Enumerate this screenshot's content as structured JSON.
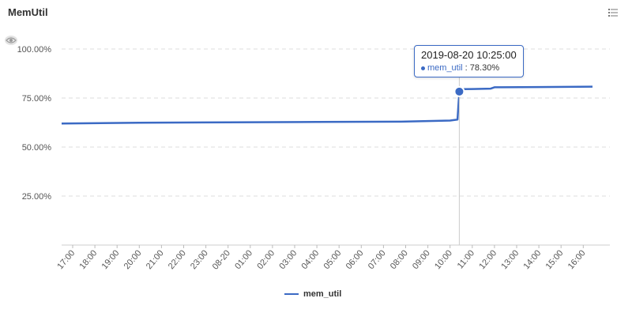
{
  "title": "MemUtil",
  "icons": {
    "menu": "list-menu-icon",
    "visibility": "eye-icon"
  },
  "colors": {
    "series": "#3b6ac4",
    "grid": "#dddddd",
    "crosshair": "#cccccc"
  },
  "tooltip": {
    "time": "2019-08-20 10:25:00",
    "series": "mem_util",
    "value_text": "78.30%"
  },
  "legend": {
    "label": "mem_util"
  },
  "chart_data": {
    "type": "line",
    "title": "MemUtil",
    "xlabel": "",
    "ylabel": "",
    "ylim": [
      0,
      100
    ],
    "y_ticks": [
      "25.00%",
      "50.00%",
      "75.00%",
      "100.00%"
    ],
    "x_ticks": [
      "17:00",
      "18:00",
      "19:00",
      "20:00",
      "21:00",
      "22:00",
      "23:00",
      "08-20",
      "01:00",
      "02:00",
      "03:00",
      "04:00",
      "05:00",
      "06:00",
      "07:00",
      "08:00",
      "09:00",
      "10:00",
      "11:00",
      "12:00",
      "13:00",
      "14:00",
      "15:00",
      "16:00"
    ],
    "grid": true,
    "legend_position": "bottom",
    "series": [
      {
        "name": "mem_util",
        "points": [
          [
            "2019-08-19 16:30",
            62.0
          ],
          [
            "2019-08-19 20:00",
            62.4
          ],
          [
            "2019-08-20 00:00",
            62.6
          ],
          [
            "2019-08-20 04:00",
            62.8
          ],
          [
            "2019-08-20 08:00",
            63.0
          ],
          [
            "2019-08-20 10:00",
            63.5
          ],
          [
            "2019-08-20 10:20",
            64.0
          ],
          [
            "2019-08-20 10:25",
            78.3
          ],
          [
            "2019-08-20 10:30",
            79.5
          ],
          [
            "2019-08-20 11:00",
            79.6
          ],
          [
            "2019-08-20 11:50",
            79.8
          ],
          [
            "2019-08-20 12:00",
            80.5
          ],
          [
            "2019-08-20 14:00",
            80.6
          ],
          [
            "2019-08-20 16:25",
            80.8
          ]
        ]
      }
    ],
    "highlight": {
      "time": "2019-08-20 10:25",
      "value": 78.3
    }
  }
}
